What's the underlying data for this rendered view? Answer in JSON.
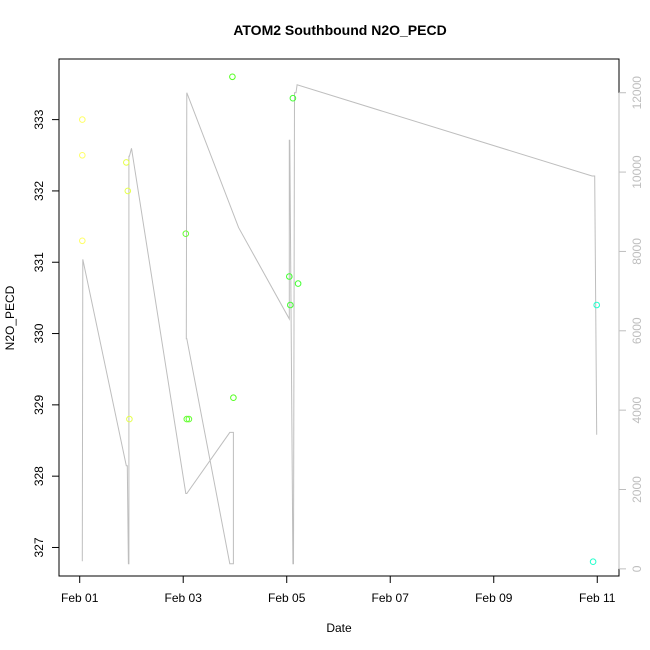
{
  "chart_data": {
    "type": "scatter",
    "title": "ATOM2 Southbound N2O_PECD",
    "xlabel": "Date",
    "ylabel": "N2O_PECD",
    "x_ticks": [
      {
        "day": 1,
        "label": "Feb 01"
      },
      {
        "day": 3,
        "label": "Feb 03"
      },
      {
        "day": 5,
        "label": "Feb 05"
      },
      {
        "day": 7,
        "label": "Feb 07"
      },
      {
        "day": 9,
        "label": "Feb 09"
      },
      {
        "day": 11,
        "label": "Feb 11"
      }
    ],
    "xlim_days": [
      0.6,
      11.42
    ],
    "ylim": [
      326.6,
      333.85
    ],
    "y_ticks": [
      327,
      328,
      329,
      330,
      331,
      332,
      333
    ],
    "y2lim": [
      -180,
      12850
    ],
    "y2_ticks": [
      0,
      2000,
      4000,
      6000,
      8000,
      10000,
      12000
    ],
    "points": [
      {
        "day": 1.05,
        "y": 333.0,
        "color": "#ffff66"
      },
      {
        "day": 1.05,
        "y": 332.5,
        "color": "#ffff66"
      },
      {
        "day": 1.05,
        "y": 331.3,
        "color": "#ffff66"
      },
      {
        "day": 1.9,
        "y": 332.4,
        "color": "#e6ff4d"
      },
      {
        "day": 1.93,
        "y": 332.0,
        "color": "#e6ff4d"
      },
      {
        "day": 1.96,
        "y": 328.8,
        "color": "#e6ff4d"
      },
      {
        "day": 3.05,
        "y": 331.4,
        "color": "#66ff33"
      },
      {
        "day": 3.07,
        "y": 328.8,
        "color": "#66ff33"
      },
      {
        "day": 3.11,
        "y": 328.8,
        "color": "#66ff33"
      },
      {
        "day": 3.95,
        "y": 333.6,
        "color": "#55ff22"
      },
      {
        "day": 3.97,
        "y": 329.1,
        "color": "#55ff22"
      },
      {
        "day": 5.05,
        "y": 330.8,
        "color": "#44ff33"
      },
      {
        "day": 5.07,
        "y": 330.4,
        "color": "#44ff33"
      },
      {
        "day": 5.12,
        "y": 333.3,
        "color": "#44ff33"
      },
      {
        "day": 5.22,
        "y": 330.7,
        "color": "#44ff33"
      },
      {
        "day": 10.92,
        "y": 326.8,
        "color": "#22ffcc"
      },
      {
        "day": 10.99,
        "y": 330.4,
        "color": "#22ffcc"
      }
    ],
    "line_series": {
      "axis": "right",
      "color": "#bebebe",
      "x": [
        1.05,
        1.06,
        1.9,
        1.92,
        1.94,
        1.95,
        1.95,
        1.96,
        2.0,
        3.05,
        3.07,
        3.9,
        3.97,
        3.97,
        3.9,
        3.07,
        3.06,
        3.07,
        4.07,
        5.05,
        5.05,
        5.06,
        5.12,
        5.13,
        5.15,
        5.18,
        5.2,
        10.9,
        10.95,
        10.99
      ],
      "y": [
        190,
        7800,
        2600,
        2600,
        130,
        130,
        10400,
        10400,
        10600,
        1900,
        1900,
        3440,
        3440,
        130,
        130,
        5800,
        5800,
        12000,
        8600,
        6300,
        10800,
        10800,
        130,
        130,
        12000,
        12000,
        12200,
        9900,
        9900,
        3380
      ]
    }
  }
}
